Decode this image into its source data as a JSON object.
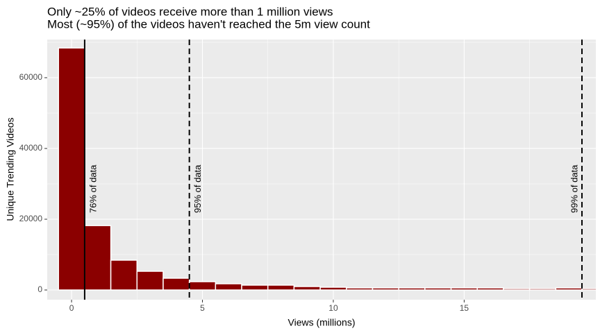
{
  "chart_data": {
    "type": "histogram",
    "title_lines": [
      "Only ~25% of videos receive more than 1 million views",
      "Most (~95%) of the videos haven't reached the 5m view count"
    ],
    "x_label": "Views (millions)",
    "y_label": "Unique Trending Videos",
    "bins": [
      -0.5,
      0.5,
      1.5,
      2.5,
      3.5,
      4.5,
      5.5,
      6.5,
      7.5,
      8.5,
      9.5,
      10.5,
      11.5,
      12.5,
      13.5,
      14.5,
      15.5,
      16.5,
      17.5,
      18.5,
      19.5,
      20.5
    ],
    "counts": [
      68400,
      18200,
      8430,
      5290,
      3330,
      2350,
      1760,
      1370,
      1370,
      980,
      780,
      590,
      590,
      590,
      590,
      590,
      590,
      390,
      390,
      590,
      390
    ],
    "color": "#8b0000",
    "xlim": [
      -0.93,
      20.03
    ],
    "ylim": [
      -2745,
      70780
    ],
    "xticks": [
      0,
      5,
      10,
      15
    ],
    "yticks": [
      0,
      20000,
      40000,
      60000
    ],
    "xminor": [
      2.5,
      7.5,
      12.5,
      17.5
    ],
    "yminor": [
      10000,
      30000,
      50000,
      70000
    ],
    "grid": true,
    "vlines": [
      {
        "x": 0.5,
        "label": "76% of data",
        "style": "solid",
        "label_side": "right"
      },
      {
        "x": 4.5,
        "label": "95% of data",
        "style": "dashed",
        "label_side": "right"
      },
      {
        "x": 19.5,
        "label": "99% of data",
        "style": "dashed",
        "label_side": "left"
      }
    ]
  }
}
